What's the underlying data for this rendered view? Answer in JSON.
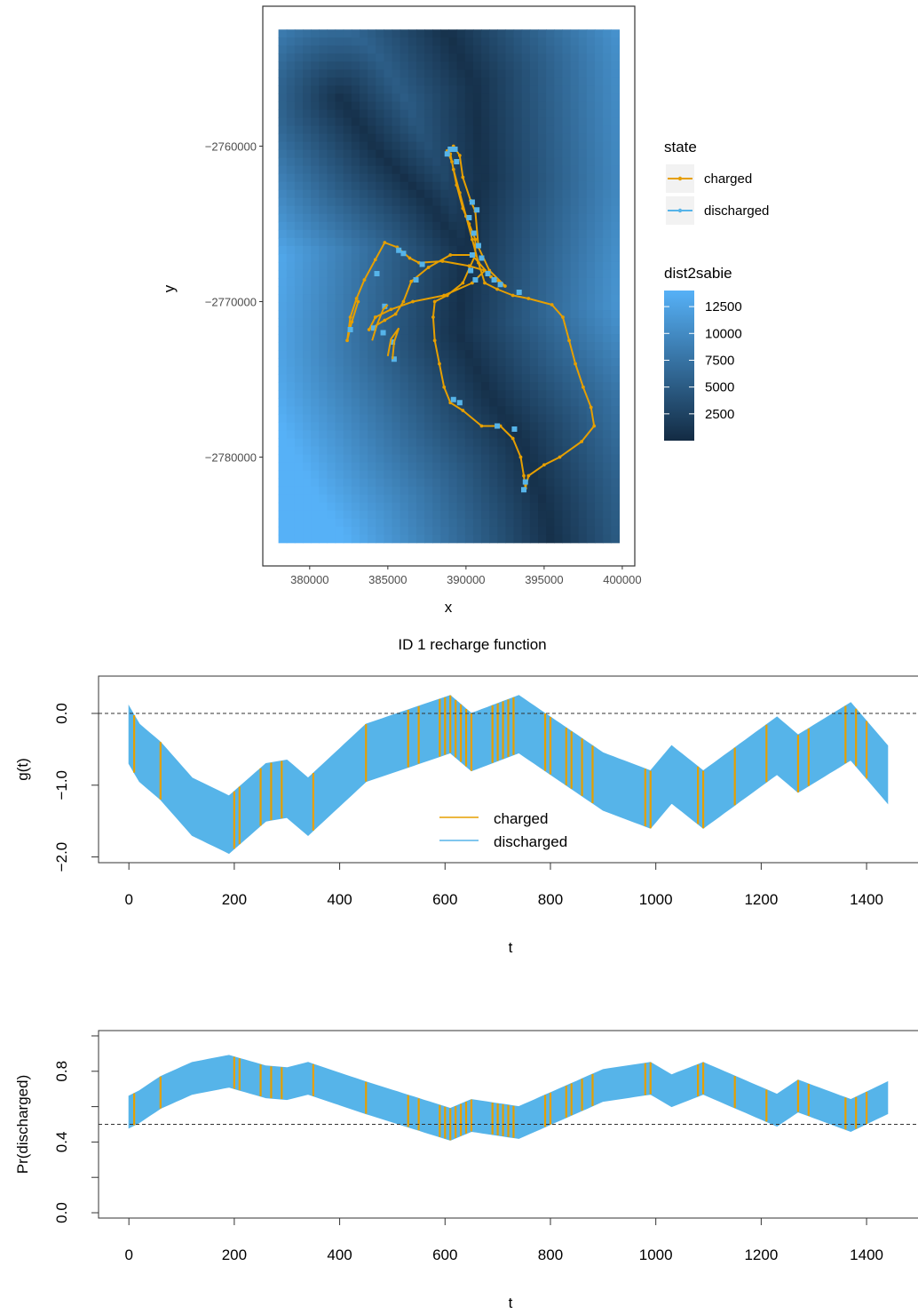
{
  "chart_data": [
    {
      "type": "scatter",
      "panel": "map",
      "xlabel": "x",
      "ylabel": "y",
      "x_ticks": [
        380000,
        385000,
        390000,
        395000,
        400000
      ],
      "x_tick_labels": [
        "380000",
        "385000",
        "390000",
        "395000",
        "400000"
      ],
      "y_ticks": [
        -2760000,
        -2770000,
        -2780000
      ],
      "y_tick_labels": [
        "−2760000",
        "−2770000",
        "−2780000"
      ],
      "xlim": [
        377000,
        400800
      ],
      "ylim": [
        -2787000,
        -2751000
      ],
      "raster": {
        "name": "dist2sabie",
        "xlim": [
          378000,
          399800
        ],
        "ylim": [
          -2785500,
          -2752500
        ],
        "low_color": "#132b43",
        "high_color": "#56b1f7",
        "max_value": 14000
      },
      "legend_state_title": "state",
      "legend_fill_title": "dist2sabie",
      "legend_fill_labels": [
        "12500",
        "10000",
        "7500",
        "5000",
        "2500"
      ],
      "legend_fill_values": [
        12500,
        10000,
        7500,
        5000,
        2500
      ],
      "series": [
        {
          "name": "charged",
          "color": "#e69f00"
        },
        {
          "name": "discharged",
          "color": "#56b4e9"
        }
      ],
      "track": [
        [
          389000,
          -2760500
        ],
        [
          389200,
          -2761500
        ],
        [
          389600,
          -2763000
        ],
        [
          390000,
          -2764500
        ],
        [
          390400,
          -2766000
        ],
        [
          390800,
          -2767500
        ],
        [
          391200,
          -2768800
        ],
        [
          392000,
          -2769200
        ],
        [
          393000,
          -2769600
        ],
        [
          394000,
          -2769800
        ],
        [
          395500,
          -2770200
        ],
        [
          396200,
          -2771000
        ],
        [
          396600,
          -2772500
        ],
        [
          397000,
          -2774000
        ],
        [
          397500,
          -2775500
        ],
        [
          398000,
          -2776800
        ],
        [
          398200,
          -2778000
        ],
        [
          397400,
          -2779000
        ],
        [
          396000,
          -2780000
        ],
        [
          395000,
          -2780500
        ],
        [
          394000,
          -2781200
        ],
        [
          393800,
          -2782000
        ],
        [
          393700,
          -2781200
        ],
        [
          393500,
          -2780000
        ],
        [
          393000,
          -2778800
        ],
        [
          392200,
          -2778000
        ],
        [
          391000,
          -2778000
        ],
        [
          389800,
          -2777000
        ],
        [
          389000,
          -2776500
        ],
        [
          388600,
          -2775500
        ],
        [
          388300,
          -2774000
        ],
        [
          388000,
          -2772500
        ],
        [
          387900,
          -2771000
        ],
        [
          388000,
          -2770000
        ],
        [
          388800,
          -2769600
        ],
        [
          389800,
          -2768800
        ],
        [
          390600,
          -2767000
        ],
        [
          390600,
          -2766000
        ],
        [
          390200,
          -2765000
        ],
        [
          389800,
          -2764000
        ],
        [
          389400,
          -2762500
        ],
        [
          389100,
          -2761000
        ],
        [
          388800,
          -2760300
        ],
        [
          389200,
          -2760000
        ],
        [
          389600,
          -2760600
        ],
        [
          389800,
          -2762000
        ],
        [
          390300,
          -2763500
        ],
        [
          390600,
          -2764200
        ],
        [
          390800,
          -2766500
        ],
        [
          391500,
          -2768000
        ],
        [
          392500,
          -2769000
        ],
        [
          391600,
          -2768400
        ],
        [
          390400,
          -2767000
        ],
        [
          389000,
          -2767000
        ],
        [
          387600,
          -2767800
        ],
        [
          386500,
          -2768700
        ],
        [
          386000,
          -2770000
        ],
        [
          385500,
          -2770800
        ],
        [
          384800,
          -2771200
        ],
        [
          383800,
          -2771800
        ],
        [
          384200,
          -2771000
        ],
        [
          385200,
          -2770500
        ],
        [
          386600,
          -2770000
        ],
        [
          388600,
          -2769600
        ],
        [
          390400,
          -2768800
        ],
        [
          391200,
          -2768000
        ],
        [
          390200,
          -2767700
        ],
        [
          388500,
          -2767400
        ],
        [
          387000,
          -2767500
        ],
        [
          386400,
          -2767200
        ],
        [
          385600,
          -2766500
        ],
        [
          384800,
          -2766200
        ],
        [
          384200,
          -2767300
        ],
        [
          383500,
          -2768600
        ],
        [
          383000,
          -2769800
        ],
        [
          382600,
          -2771000
        ],
        [
          382400,
          -2772500
        ],
        [
          382700,
          -2771300
        ],
        [
          383100,
          -2770000
        ]
      ],
      "side_segments": [
        [
          [
            384000,
            -2772500
          ],
          [
            384300,
            -2771500
          ],
          [
            384700,
            -2770500
          ],
          [
            385000,
            -2770200
          ]
        ],
        [
          [
            385000,
            -2773500
          ],
          [
            385200,
            -2772400
          ],
          [
            385700,
            -2771700
          ],
          [
            385400,
            -2772600
          ],
          [
            385300,
            -2773700
          ]
        ]
      ],
      "discharged_points": [
        [
          389000,
          -2760200
        ],
        [
          388800,
          -2760500
        ],
        [
          389300,
          -2760200
        ],
        [
          389400,
          -2761000
        ],
        [
          390400,
          -2763600
        ],
        [
          390700,
          -2764100
        ],
        [
          390200,
          -2764600
        ],
        [
          390500,
          -2765600
        ],
        [
          390800,
          -2766400
        ],
        [
          390400,
          -2767000
        ],
        [
          391000,
          -2767200
        ],
        [
          391400,
          -2768200
        ],
        [
          391800,
          -2768600
        ],
        [
          390600,
          -2768600
        ],
        [
          390300,
          -2768000
        ],
        [
          392200,
          -2768900
        ],
        [
          393400,
          -2769400
        ],
        [
          387200,
          -2767600
        ],
        [
          386800,
          -2768600
        ],
        [
          385700,
          -2766700
        ],
        [
          386000,
          -2766900
        ],
        [
          384300,
          -2768200
        ],
        [
          382600,
          -2771800
        ],
        [
          384100,
          -2771700
        ],
        [
          384700,
          -2772000
        ],
        [
          385300,
          -2772600
        ],
        [
          385400,
          -2773700
        ],
        [
          384800,
          -2770300
        ],
        [
          389200,
          -2776300
        ],
        [
          389600,
          -2776500
        ],
        [
          392000,
          -2778000
        ],
        [
          393100,
          -2778200
        ],
        [
          393800,
          -2781600
        ],
        [
          393700,
          -2782100
        ]
      ]
    },
    {
      "type": "line",
      "panel": "recharge",
      "title": "ID 1 recharge function",
      "xlabel": "t",
      "ylabel": "g(t)",
      "xlim": [
        -57.6,
        1497.6
      ],
      "ylim": [
        -2.08,
        0.52
      ],
      "x_ticks": [
        0,
        200,
        400,
        600,
        800,
        1000,
        1200,
        1400
      ],
      "x_tick_labels": [
        "0",
        "200",
        "400",
        "600",
        "800",
        "1000",
        "1200",
        "1400"
      ],
      "y_ticks": [
        0,
        -1,
        -2
      ],
      "y_tick_labels": [
        "0.0",
        "−1.0",
        "−2.0"
      ],
      "hline": 0,
      "series": [
        {
          "name": "charged",
          "color": "#e69f00"
        },
        {
          "name": "discharged",
          "color": "#56b4e9"
        }
      ],
      "center_t": [
        0,
        20,
        60,
        120,
        190,
        260,
        300,
        340,
        450,
        610,
        650,
        740,
        900,
        990,
        1030,
        1090,
        1230,
        1270,
        1370,
        1440
      ],
      "center_v": [
        -0.3,
        -0.55,
        -0.8,
        -1.3,
        -1.55,
        -1.1,
        -1.05,
        -1.3,
        -0.55,
        -0.15,
        -0.4,
        -0.15,
        -0.95,
        -1.2,
        -0.85,
        -1.2,
        -0.45,
        -0.7,
        -0.25,
        -0.85
      ],
      "band_halfwidth": 0.4,
      "charged_times": [
        10,
        60,
        200,
        210,
        250,
        270,
        290,
        350,
        450,
        530,
        550,
        590,
        600,
        610,
        620,
        630,
        640,
        650,
        690,
        700,
        710,
        720,
        730,
        790,
        800,
        830,
        840,
        860,
        880,
        980,
        990,
        1080,
        1090,
        1150,
        1210,
        1270,
        1290,
        1360,
        1380,
        1400
      ]
    },
    {
      "type": "line",
      "panel": "probability",
      "xlabel": "t",
      "ylabel": "Pr(discharged)",
      "xlim": [
        -57.6,
        1497.6
      ],
      "ylim": [
        -0.03,
        1.03
      ],
      "x_ticks": [
        0,
        200,
        400,
        600,
        800,
        1000,
        1200,
        1400
      ],
      "x_tick_labels": [
        "0",
        "200",
        "400",
        "600",
        "800",
        "1000",
        "1200",
        "1400"
      ],
      "y_ticks": [
        0,
        0.2,
        0.4,
        0.6,
        0.8,
        1.0
      ],
      "y_tick_labels": [
        "0.0",
        "",
        "0.4",
        "",
        "0.8",
        ""
      ],
      "hline": 0.5,
      "center_t": [
        0,
        20,
        60,
        120,
        190,
        260,
        300,
        340,
        450,
        610,
        650,
        740,
        900,
        990,
        1030,
        1090,
        1230,
        1270,
        1370,
        1440
      ],
      "center_v": [
        0.57,
        0.6,
        0.68,
        0.76,
        0.8,
        0.74,
        0.73,
        0.76,
        0.65,
        0.5,
        0.55,
        0.51,
        0.72,
        0.76,
        0.69,
        0.76,
        0.58,
        0.66,
        0.55,
        0.65
      ],
      "band_halfwidth": 0.09,
      "charged_times": [
        10,
        60,
        200,
        210,
        250,
        270,
        290,
        350,
        450,
        530,
        550,
        590,
        600,
        610,
        620,
        630,
        640,
        650,
        690,
        700,
        710,
        720,
        730,
        790,
        800,
        830,
        840,
        860,
        880,
        980,
        990,
        1080,
        1090,
        1150,
        1210,
        1270,
        1290,
        1360,
        1380,
        1400
      ]
    }
  ]
}
